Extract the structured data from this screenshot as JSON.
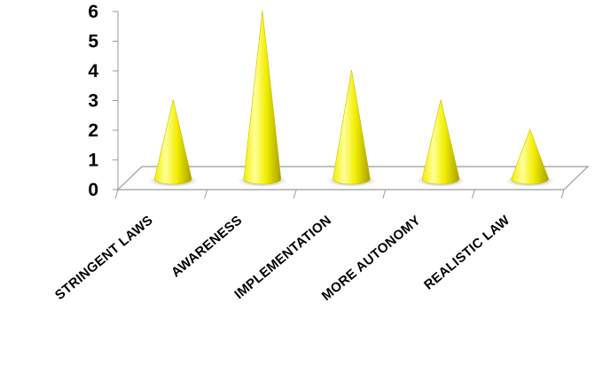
{
  "chart_data": {
    "type": "bar",
    "bar_shape": "cone-3d",
    "categories": [
      "Stringent Laws",
      "Awareness",
      "Implementation",
      "More Autonomy",
      "Realistic Law"
    ],
    "values": [
      3,
      6,
      4,
      3,
      2
    ],
    "ylim": [
      0,
      6
    ],
    "yticks": [
      "0",
      "1",
      "2",
      "3",
      "4",
      "5",
      "6"
    ],
    "grid": false,
    "legend": "none",
    "title": "",
    "xlabel": "",
    "ylabel": "",
    "colors": {
      "cone_light": "#ffff99",
      "cone_mid": "#f2ee00",
      "cone_dark": "#a89f00",
      "floor_stroke": "#9a9a9a",
      "shadow": "#6b6b6b"
    }
  }
}
